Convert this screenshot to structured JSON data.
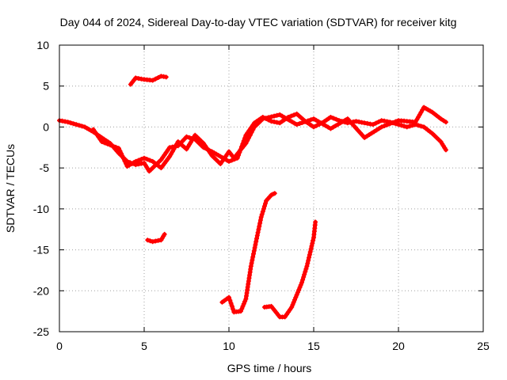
{
  "chart_data": {
    "type": "scatter",
    "title": "Day 044 of 2024, Sidereal Day-to-day VTEC variation (SDTVAR) for receiver kitg",
    "xlabel": "GPS time / hours",
    "ylabel": "SDTVAR / TECUs",
    "xlim": [
      0,
      25
    ],
    "ylim": [
      -25,
      10
    ],
    "xticks": [
      0,
      5,
      10,
      15,
      20,
      25
    ],
    "yticks": [
      10,
      5,
      0,
      -5,
      -10,
      -15,
      -20,
      -25
    ],
    "grid": true,
    "marker": "plus",
    "series_color": "#ff0000",
    "series": [
      {
        "name": "main-band",
        "points": [
          [
            0,
            0.8
          ],
          [
            0.5,
            0.6
          ],
          [
            1,
            0.3
          ],
          [
            1.5,
            0
          ],
          [
            2,
            -0.6
          ],
          [
            2.5,
            -1.3
          ],
          [
            3,
            -2
          ],
          [
            3.5,
            -3.2
          ],
          [
            4,
            -4.2
          ],
          [
            4.5,
            -4.6
          ],
          [
            5,
            -4.4
          ],
          [
            5.3,
            -5.4
          ],
          [
            5.6,
            -4.8
          ],
          [
            6,
            -4
          ],
          [
            6.5,
            -2.5
          ],
          [
            7,
            -2.3
          ],
          [
            7.5,
            -1.2
          ],
          [
            8,
            -1.5
          ],
          [
            8.5,
            -2.5
          ],
          [
            9,
            -3
          ],
          [
            9.5,
            -3.6
          ],
          [
            10,
            -4.2
          ],
          [
            10.5,
            -3.8
          ],
          [
            11,
            -1
          ],
          [
            11.5,
            0.5
          ],
          [
            12,
            1.2
          ],
          [
            12.5,
            0.7
          ],
          [
            13,
            0.5
          ],
          [
            13.5,
            1.2
          ],
          [
            14,
            1.6
          ],
          [
            14.5,
            0.7
          ],
          [
            15,
            0
          ],
          [
            15.5,
            0.5
          ],
          [
            16,
            1.2
          ],
          [
            16.5,
            0.8
          ],
          [
            17,
            0.5
          ],
          [
            17.5,
            0.7
          ],
          [
            18,
            0.5
          ],
          [
            18.5,
            0.3
          ],
          [
            19,
            0.8
          ],
          [
            19.5,
            0.6
          ],
          [
            20,
            0.3
          ],
          [
            20.5,
            0
          ],
          [
            21,
            0.3
          ],
          [
            21.5,
            0
          ],
          [
            22,
            -0.8
          ],
          [
            22.5,
            -1.8
          ],
          [
            22.8,
            -2.8
          ]
        ]
      },
      {
        "name": "secondary-band",
        "points": [
          [
            2,
            -0.3
          ],
          [
            2.5,
            -1.8
          ],
          [
            3,
            -2.2
          ],
          [
            3.5,
            -2.6
          ],
          [
            4,
            -4.8
          ],
          [
            4.5,
            -4.2
          ],
          [
            5,
            -3.8
          ],
          [
            5.5,
            -4.2
          ],
          [
            6,
            -5
          ],
          [
            6.5,
            -3.6
          ],
          [
            7,
            -1.8
          ],
          [
            7.5,
            -2.7
          ],
          [
            8,
            -1
          ],
          [
            8.5,
            -2
          ],
          [
            9,
            -3.5
          ],
          [
            9.5,
            -4.5
          ],
          [
            10,
            -3
          ],
          [
            10.3,
            -3.8
          ],
          [
            11,
            -2
          ],
          [
            11.5,
            0
          ],
          [
            12,
            1
          ],
          [
            13,
            1.5
          ],
          [
            14,
            0.3
          ],
          [
            15,
            1
          ],
          [
            16,
            -0.2
          ],
          [
            17,
            1
          ],
          [
            18,
            -1.3
          ],
          [
            19,
            0
          ],
          [
            20,
            0.8
          ],
          [
            21,
            0.6
          ],
          [
            21.5,
            2.4
          ],
          [
            22,
            1.8
          ],
          [
            22.5,
            1
          ],
          [
            22.8,
            0.6
          ]
        ]
      },
      {
        "name": "top-segment",
        "points": [
          [
            4.2,
            5.2
          ],
          [
            4.5,
            6
          ],
          [
            5,
            5.8
          ],
          [
            5.5,
            5.7
          ],
          [
            6,
            6.2
          ],
          [
            6.3,
            6.1
          ]
        ]
      },
      {
        "name": "mid-segment",
        "points": [
          [
            5.2,
            -13.8
          ],
          [
            5.5,
            -14
          ],
          [
            6,
            -13.8
          ],
          [
            6.2,
            -13.1
          ]
        ]
      },
      {
        "name": "steep-arc-1",
        "points": [
          [
            9.6,
            -21.4
          ],
          [
            10,
            -20.8
          ],
          [
            10.3,
            -22.6
          ],
          [
            10.7,
            -22.5
          ],
          [
            11,
            -21
          ],
          [
            11.3,
            -17
          ],
          [
            11.6,
            -14
          ],
          [
            11.9,
            -11
          ],
          [
            12.2,
            -9
          ],
          [
            12.5,
            -8.3
          ],
          [
            12.7,
            -8.1
          ]
        ]
      },
      {
        "name": "steep-arc-2",
        "points": [
          [
            12.1,
            -22
          ],
          [
            12.5,
            -21.9
          ],
          [
            13,
            -23.2
          ],
          [
            13.3,
            -23.2
          ],
          [
            13.7,
            -22
          ],
          [
            14,
            -20.5
          ],
          [
            14.3,
            -19
          ],
          [
            14.6,
            -17
          ],
          [
            15,
            -13.5
          ],
          [
            15.1,
            -11.6
          ]
        ]
      }
    ]
  }
}
